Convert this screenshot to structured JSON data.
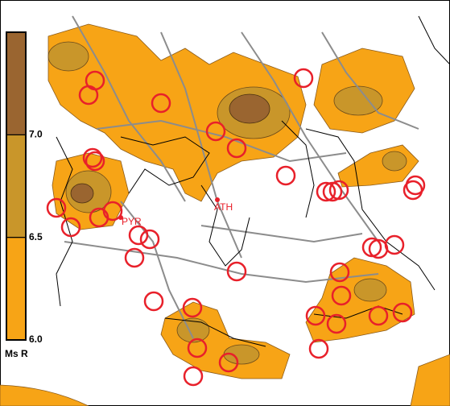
{
  "legend": {
    "title": "Ms R",
    "lim": [
      6,
      7.5
    ],
    "ticks": [
      {
        "value": 7,
        "label": "7.0"
      },
      {
        "value": 6.5,
        "label": "6.5"
      },
      {
        "value": 6,
        "label": "6.0"
      }
    ],
    "bands": [
      {
        "from": 6,
        "to": 6.5,
        "color": "#f7a416"
      },
      {
        "from": 6.5,
        "to": 7,
        "color": "#c9962a"
      },
      {
        "from": 7,
        "to": 7.5,
        "color": "#9a6530"
      }
    ]
  },
  "cities": [
    {
      "label": "ATH",
      "color": "#e8202a"
    },
    {
      "label": "PYR",
      "color": "#e8202a"
    }
  ]
}
